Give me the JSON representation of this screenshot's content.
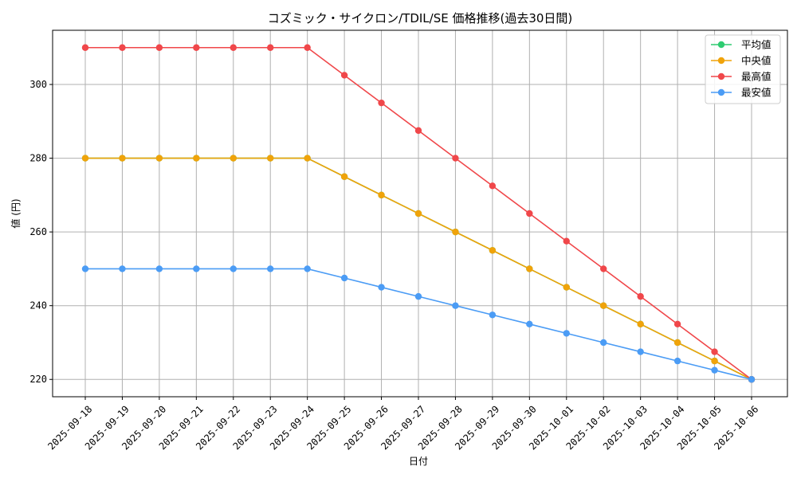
{
  "chart_data": {
    "type": "line",
    "title": "コズミック・サイクロン/TDIL/SE 価格推移(過去30日間)",
    "xlabel": "日付",
    "ylabel": "値 (円)",
    "ylim": [
      215.3,
      314.7
    ],
    "yticks": [
      220,
      240,
      260,
      280,
      300
    ],
    "grid": true,
    "legend_position": "top-right",
    "categories": [
      "2025-09-18",
      "2025-09-19",
      "2025-09-20",
      "2025-09-21",
      "2025-09-22",
      "2025-09-23",
      "2025-09-24",
      "2025-09-25",
      "2025-09-26",
      "2025-09-27",
      "2025-09-28",
      "2025-09-29",
      "2025-09-30",
      "2025-10-01",
      "2025-10-02",
      "2025-10-03",
      "2025-10-04",
      "2025-10-05",
      "2025-10-06"
    ],
    "series": [
      {
        "name": "平均値",
        "color": "#2ecc71",
        "values": [
          280,
          280,
          280,
          280,
          280,
          280,
          280,
          275,
          270,
          265,
          260,
          255,
          250,
          245,
          240,
          235,
          230,
          225,
          220
        ]
      },
      {
        "name": "中央値",
        "color": "#f0a30a",
        "values": [
          280,
          280,
          280,
          280,
          280,
          280,
          280,
          275,
          270,
          265,
          260,
          255,
          250,
          245,
          240,
          235,
          230,
          225,
          220
        ]
      },
      {
        "name": "最高値",
        "color": "#f0474a",
        "values": [
          310,
          310,
          310,
          310,
          310,
          310,
          310,
          302.5,
          295,
          287.5,
          280,
          272.5,
          265,
          257.5,
          250,
          242.5,
          235,
          227.5,
          220
        ]
      },
      {
        "name": "最安値",
        "color": "#4b9cf5",
        "values": [
          250,
          250,
          250,
          250,
          250,
          250,
          250,
          247.5,
          245,
          242.5,
          240,
          237.5,
          235,
          232.5,
          230,
          227.5,
          225,
          222.5,
          220
        ]
      }
    ]
  }
}
